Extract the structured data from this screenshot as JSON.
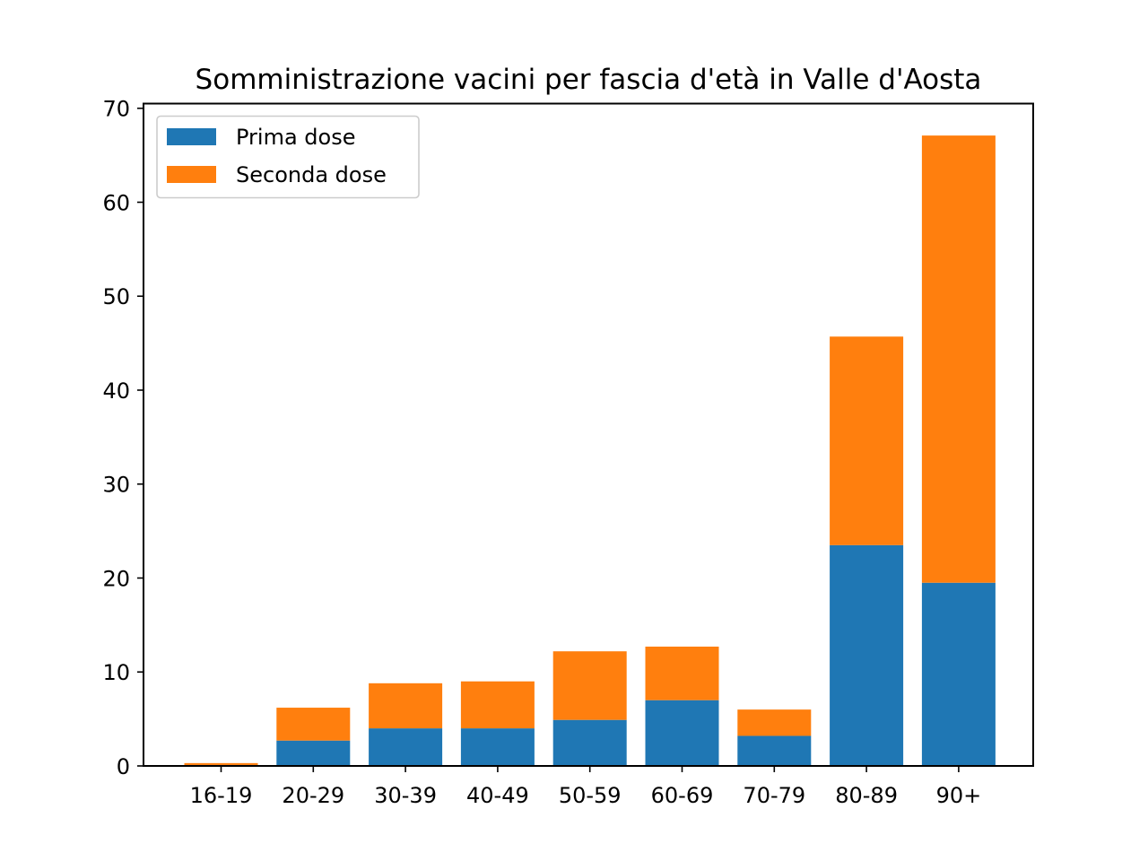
{
  "chart_data": {
    "type": "bar",
    "stacked": true,
    "title": "Somministrazione vacini per fascia d'età in Valle d'Aosta",
    "xlabel": "",
    "ylabel": "",
    "categories": [
      "16-19",
      "20-29",
      "30-39",
      "40-49",
      "50-59",
      "60-69",
      "70-79",
      "80-89",
      "90+"
    ],
    "series": [
      {
        "name": "Prima dose",
        "color": "#1f77b4",
        "values": [
          0.1,
          2.7,
          4.0,
          4.0,
          4.9,
          7.0,
          3.2,
          23.5,
          19.5
        ]
      },
      {
        "name": "Seconda dose",
        "color": "#ff7f0e",
        "values": [
          0.2,
          3.5,
          4.8,
          5.0,
          7.3,
          5.7,
          2.8,
          22.2,
          47.6
        ]
      }
    ],
    "ylim": [
      0,
      70.5
    ],
    "yticks": [
      0,
      10,
      20,
      30,
      40,
      50,
      60,
      70
    ],
    "grid": false,
    "legend_position": "top-left"
  }
}
